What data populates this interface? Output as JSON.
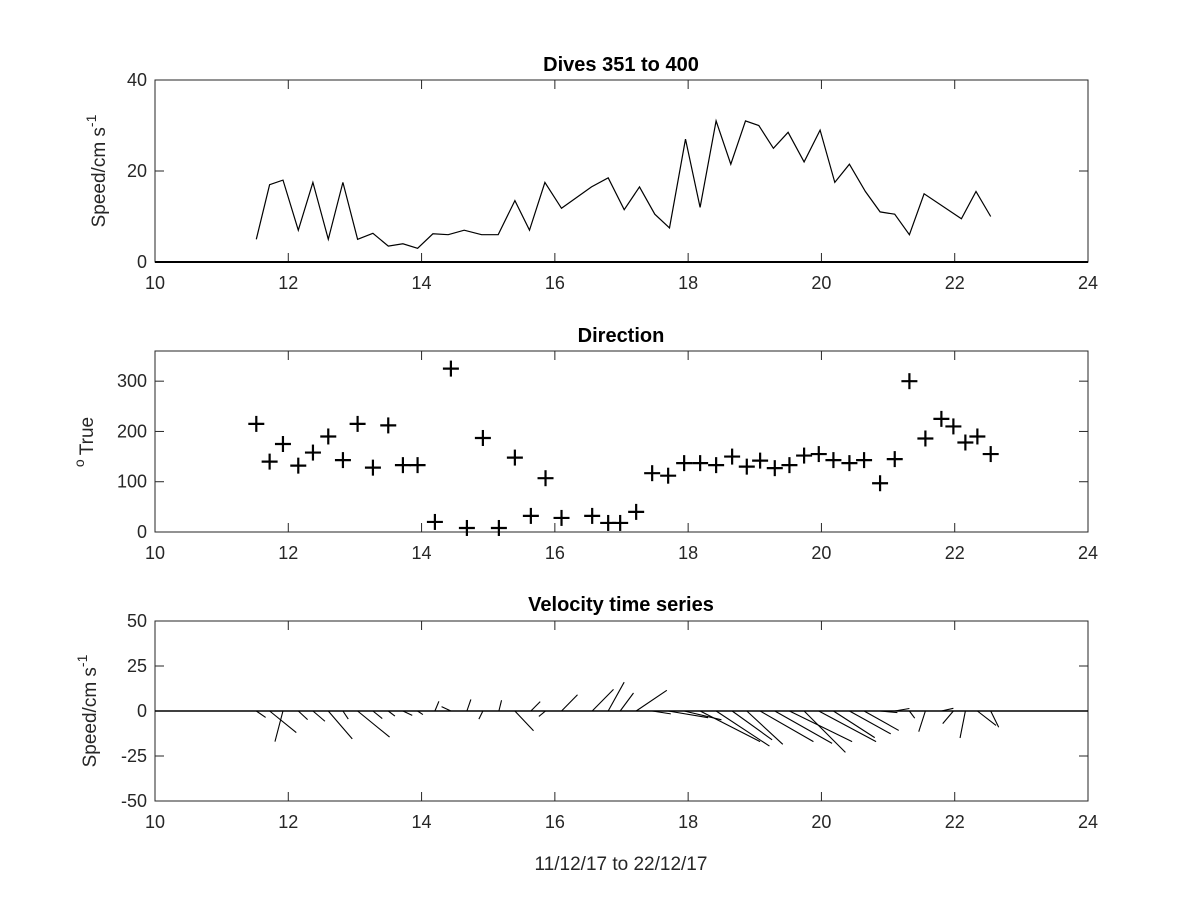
{
  "chart_data": [
    {
      "type": "line",
      "title": "Dives 351 to 400",
      "xlabel": "",
      "ylabel": "Speed/cm s",
      "ylabel_superscript": "-1",
      "xlim": [
        10,
        24
      ],
      "ylim": [
        0,
        40
      ],
      "xticks": [
        "10",
        "12",
        "14",
        "16",
        "18",
        "20",
        "22",
        "24"
      ],
      "yticks": [
        "0",
        "20",
        "40"
      ],
      "grid": false,
      "series": [
        {
          "x": [
            11.52,
            11.72,
            11.92,
            12.15,
            12.37,
            12.6,
            12.82,
            13.04,
            13.27,
            13.5,
            13.72,
            13.94,
            14.17,
            14.4,
            14.64,
            14.9,
            15.15,
            15.4,
            15.62,
            15.85,
            16.1,
            16.55,
            16.8,
            17.04,
            17.27,
            17.5,
            17.72,
            17.96,
            18.18,
            18.42,
            18.64,
            18.86,
            19.06,
            19.28,
            19.5,
            19.74,
            19.98,
            20.2,
            20.42,
            20.66,
            20.88,
            21.1,
            21.32,
            21.54,
            22.1,
            22.32,
            22.54
          ],
          "y": [
            5,
            17,
            18,
            7,
            17.5,
            5,
            17.5,
            5,
            6.3,
            3.5,
            4,
            3,
            6.2,
            6,
            7,
            6,
            6,
            13.5,
            7,
            17.5,
            11.8,
            16.5,
            18.5,
            11.5,
            16.5,
            10.5,
            7.5,
            27,
            12,
            31,
            21.5,
            31,
            30,
            25,
            28.5,
            22,
            29,
            17.5,
            21.5,
            15.5,
            11,
            10.5,
            6,
            15,
            9.5,
            15.5,
            10
          ]
        }
      ]
    },
    {
      "type": "scatter",
      "title": "Direction",
      "xlabel": "",
      "ylabel": "True",
      "ylabel_prefix_superscript": "o",
      "xlim": [
        10,
        24
      ],
      "ylim": [
        0,
        360
      ],
      "xticks": [
        "10",
        "12",
        "14",
        "16",
        "18",
        "20",
        "22",
        "24"
      ],
      "yticks": [
        "0",
        "100",
        "200",
        "300"
      ],
      "grid": false,
      "marker": "+",
      "series": [
        {
          "x": [
            11.52,
            11.72,
            11.92,
            12.15,
            12.37,
            12.6,
            12.82,
            13.04,
            13.27,
            13.5,
            13.72,
            13.94,
            14.2,
            14.44,
            14.68,
            14.92,
            15.16,
            15.4,
            15.64,
            15.86,
            16.1,
            16.56,
            16.8,
            16.98,
            17.22,
            17.46,
            17.7,
            17.94,
            18.18,
            18.42,
            18.66,
            18.88,
            19.08,
            19.3,
            19.52,
            19.74,
            19.96,
            20.18,
            20.42,
            20.64,
            20.88,
            21.1,
            21.32,
            21.56,
            21.8,
            21.98,
            22.16,
            22.34,
            22.54
          ],
          "y": [
            215,
            140,
            175,
            132,
            158,
            190,
            143,
            215,
            128,
            212,
            133,
            133,
            20,
            325,
            8,
            187,
            8,
            148,
            32,
            107,
            28,
            32,
            18,
            18,
            40,
            117,
            112,
            137,
            137,
            133,
            150,
            130,
            142,
            127,
            133,
            152,
            155,
            143,
            137,
            143,
            97,
            145,
            300,
            186,
            225,
            210,
            178,
            190,
            155
          ]
        }
      ]
    },
    {
      "type": "line",
      "title": "Velocity time series",
      "xlabel": "11/12/17 to 22/12/17",
      "ylabel": "Speed/cm s",
      "ylabel_superscript": "-1",
      "xlim": [
        10,
        24
      ],
      "ylim": [
        -50,
        50
      ],
      "xticks": [
        "10",
        "12",
        "14",
        "16",
        "18",
        "20",
        "22",
        "24"
      ],
      "yticks": [
        "-50",
        "-25",
        "0",
        "25",
        "50"
      ],
      "grid": false,
      "vectors": [
        {
          "x": 11.52,
          "dx": 0.14,
          "dy": -3.6
        },
        {
          "x": 11.72,
          "dx": 0.4,
          "dy": -12
        },
        {
          "x": 11.92,
          "dx": -0.12,
          "dy": -17
        },
        {
          "x": 12.15,
          "dx": 0.14,
          "dy": -4.8
        },
        {
          "x": 12.37,
          "dx": 0.18,
          "dy": -5.7
        },
        {
          "x": 12.6,
          "dx": 0.36,
          "dy": -15.5
        },
        {
          "x": 12.82,
          "dx": 0.08,
          "dy": -4.5
        },
        {
          "x": 13.04,
          "dx": 0.48,
          "dy": -14.5
        },
        {
          "x": 13.27,
          "dx": 0.14,
          "dy": -4.2
        },
        {
          "x": 13.5,
          "dx": 0.1,
          "dy": -2.8
        },
        {
          "x": 13.72,
          "dx": 0.14,
          "dy": -2.4
        },
        {
          "x": 13.94,
          "dx": 0.08,
          "dy": -2
        },
        {
          "x": 14.2,
          "dx": 0.06,
          "dy": 5.4
        },
        {
          "x": 14.44,
          "dx": -0.14,
          "dy": 2.4
        },
        {
          "x": 14.68,
          "dx": 0.06,
          "dy": 6.4
        },
        {
          "x": 14.92,
          "dx": -0.06,
          "dy": -4.5
        },
        {
          "x": 15.16,
          "dx": 0.04,
          "dy": 6
        },
        {
          "x": 15.4,
          "dx": 0.28,
          "dy": -11
        },
        {
          "x": 15.64,
          "dx": 0.14,
          "dy": 5.2
        },
        {
          "x": 15.86,
          "dx": -0.1,
          "dy": -3
        },
        {
          "x": 16.1,
          "dx": 0.24,
          "dy": 9
        },
        {
          "x": 16.56,
          "dx": 0.32,
          "dy": 12
        },
        {
          "x": 16.8,
          "dx": 0.24,
          "dy": 16
        },
        {
          "x": 16.98,
          "dx": 0.2,
          "dy": 10
        },
        {
          "x": 17.22,
          "dx": 0.46,
          "dy": 11.5
        },
        {
          "x": 17.46,
          "dx": 0.28,
          "dy": -1.6
        },
        {
          "x": 17.7,
          "dx": 0.6,
          "dy": -3.7
        },
        {
          "x": 17.94,
          "dx": 0.56,
          "dy": -4.9
        },
        {
          "x": 18.18,
          "dx": 0.9,
          "dy": -17
        },
        {
          "x": 18.42,
          "dx": 0.8,
          "dy": -19.5
        },
        {
          "x": 18.66,
          "dx": 0.6,
          "dy": -16
        },
        {
          "x": 18.88,
          "dx": 0.54,
          "dy": -18.5
        },
        {
          "x": 19.08,
          "dx": 0.8,
          "dy": -17
        },
        {
          "x": 19.3,
          "dx": 0.86,
          "dy": -18
        },
        {
          "x": 19.52,
          "dx": 0.94,
          "dy": -17
        },
        {
          "x": 19.74,
          "dx": 0.62,
          "dy": -23
        },
        {
          "x": 19.96,
          "dx": 0.86,
          "dy": -17
        },
        {
          "x": 20.18,
          "dx": 0.62,
          "dy": -14.8
        },
        {
          "x": 20.42,
          "dx": 0.62,
          "dy": -12.7
        },
        {
          "x": 20.64,
          "dx": 0.52,
          "dy": -10.8
        },
        {
          "x": 20.88,
          "dx": 0.26,
          "dy": -0.9
        },
        {
          "x": 21.1,
          "dx": 0.22,
          "dy": 1.4
        },
        {
          "x": 21.32,
          "dx": 0.08,
          "dy": -4
        },
        {
          "x": 21.56,
          "dx": -0.1,
          "dy": -11.5
        },
        {
          "x": 21.8,
          "dx": 0.18,
          "dy": 1.5
        },
        {
          "x": 21.98,
          "dx": -0.16,
          "dy": -7
        },
        {
          "x": 22.16,
          "dx": -0.08,
          "dy": -15
        },
        {
          "x": 22.34,
          "dx": 0.28,
          "dy": -8
        },
        {
          "x": 22.54,
          "dx": 0.12,
          "dy": -9
        }
      ]
    }
  ]
}
